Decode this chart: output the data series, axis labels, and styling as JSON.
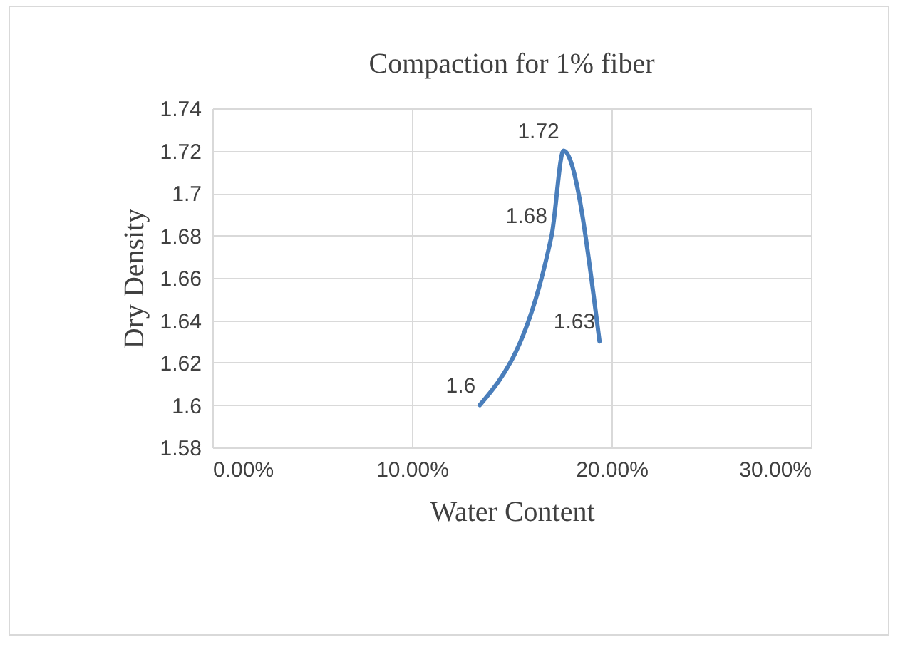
{
  "chart_data": {
    "type": "line",
    "title": "Compaction for 1% fiber",
    "xlabel": "Water Content",
    "ylabel": "Dry Density",
    "x": [
      0.134,
      0.17,
      0.176,
      0.194
    ],
    "series": [
      {
        "color": "#4a7ebb",
        "values": [
          1.6,
          1.68,
          1.72,
          1.63
        ]
      }
    ],
    "xlim": [
      0,
      0.3
    ],
    "xticks": [
      {
        "value": 0,
        "label": "0.00%"
      },
      {
        "value": 0.1,
        "label": "10.00%"
      },
      {
        "value": 0.2,
        "label": "20.00%"
      },
      {
        "value": 0.3,
        "label": "30.00%"
      }
    ],
    "ylim": [
      1.58,
      1.74
    ],
    "yticks": [
      1.58,
      1.6,
      1.62,
      1.64,
      1.66,
      1.68,
      1.7,
      1.72,
      1.74
    ],
    "grid": true,
    "data_labels": true,
    "marker": "none",
    "line_style": "solid"
  }
}
